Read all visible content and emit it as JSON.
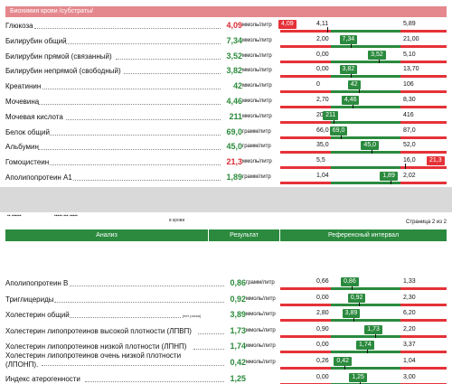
{
  "sheet1": {
    "section_title": "Биохимия крови /субстраты/",
    "rows": [
      {
        "name": "Глюкоза",
        "value": "4,09",
        "unit": "ммоль/литр",
        "abnormal": true,
        "low": "4,11",
        "high": "5,89",
        "badge": "4,09",
        "pos": -0.05,
        "badge_left": true
      },
      {
        "name": "Билирубин общий",
        "value": "7,34",
        "unit": "ммоль/литр",
        "abnormal": false,
        "low": "2,00",
        "high": "21,00",
        "badge": "7,34",
        "pos": 0.28
      },
      {
        "name": "Билирубин прямой (связанный)",
        "value": "3,52",
        "unit": "ммоль/литр",
        "abnormal": false,
        "low": "0,00",
        "high": "5,10",
        "badge": "3,52",
        "pos": 0.69
      },
      {
        "name": "Билирубин непрямой (свободный)",
        "value": "3,82",
        "unit": "ммоль/литр",
        "abnormal": false,
        "low": "0,00",
        "high": "13,70",
        "badge": "3,82",
        "pos": 0.28
      },
      {
        "name": "Креатинин",
        "value": "42",
        "unit": "ммоль/литр",
        "abnormal": false,
        "low": "0",
        "high": "106",
        "badge": "42",
        "pos": 0.4
      },
      {
        "name": "Мочевина",
        "value": "4,46",
        "unit": "ммоль/литр",
        "abnormal": false,
        "low": "2,70",
        "high": "8,30",
        "badge": "4,46",
        "pos": 0.31
      },
      {
        "name": "Мочевая кислота",
        "value": "211",
        "unit": "ммоль/литр",
        "abnormal": false,
        "low": "202",
        "high": "416",
        "badge": "211",
        "pos": 0.04
      },
      {
        "name": "Белок общий",
        "value": "69,0",
        "unit": "грамм/литр",
        "abnormal": false,
        "low": "66,0",
        "high": "87,0",
        "badge": "69,0",
        "pos": 0.14
      },
      {
        "name": "Альбумин",
        "value": "45,0",
        "unit": "грамм/литр",
        "abnormal": false,
        "low": "35,0",
        "high": "52,0",
        "badge": "45,0",
        "pos": 0.59
      },
      {
        "name": "Гомоцистеин",
        "value": "21,3",
        "unit": "ммоль/литр",
        "abnormal": true,
        "low": "5,5",
        "high": "16,0",
        "badge": "21,3",
        "pos": 1.06,
        "badge_right": true
      },
      {
        "name": "Аполипопротеин А1",
        "value": "1,89",
        "unit": "грамм/литр",
        "abnormal": false,
        "low": "1,04",
        "high": "2,02",
        "badge": "1,89",
        "pos": 0.86
      }
    ]
  },
  "sheet2": {
    "header_fragment": "в крови",
    "page_label": "Страница 2 из 2",
    "columns": {
      "analysis": "Анализ",
      "result": "Результат",
      "reference": "Референсный интервал"
    },
    "rows": [
      {
        "name": "Аполипопротеин В",
        "value": "0,86",
        "unit": "грамм/литр",
        "abnormal": false,
        "low": "0,66",
        "high": "1,33",
        "badge": "0,86",
        "pos": 0.3
      },
      {
        "name": "Триглицериды",
        "value": "0,92",
        "unit": "ммоль/литр",
        "abnormal": false,
        "low": "0,00",
        "high": "2,30",
        "badge": "0,92",
        "pos": 0.4
      },
      {
        "name": "Холестерин общий",
        "note": "[нет риска]",
        "value": "3,89",
        "unit": "ммоль/литр",
        "abnormal": false,
        "low": "2,80",
        "high": "6,20",
        "badge": "3,89",
        "pos": 0.32
      },
      {
        "name": "Холестерин липопротеинов высокой плотности (ЛПВП)",
        "value": "1,73",
        "unit": "ммоль/литр",
        "abnormal": false,
        "low": "0,90",
        "high": "2,20",
        "badge": "1,73",
        "pos": 0.64
      },
      {
        "name": "Холестерин липопротеинов низкой плотности (ЛПНП)",
        "value": "1,74",
        "unit": "ммоль/литр",
        "abnormal": false,
        "low": "0,00",
        "high": "3,37",
        "badge": "1,74",
        "pos": 0.52
      },
      {
        "name": "Холестерин липопротеинов очень низкой плотности",
        "name2": "(ЛПОНП).",
        "value": "0,42",
        "unit": "ммоль/литр",
        "abnormal": false,
        "low": "0,26",
        "high": "1,04",
        "badge": "0,42",
        "pos": 0.2
      },
      {
        "name": "Индекс атерогенности",
        "value": "1,25",
        "unit": "",
        "abnormal": false,
        "low": "0,00",
        "high": "3,00",
        "badge": "1,25",
        "pos": 0.42
      }
    ]
  },
  "colors": {
    "green": "#2b8a3e",
    "red": "#e53238",
    "header_pink": "#e4888d",
    "value_green": "#2a8a3a",
    "value_red": "#d62b33"
  }
}
